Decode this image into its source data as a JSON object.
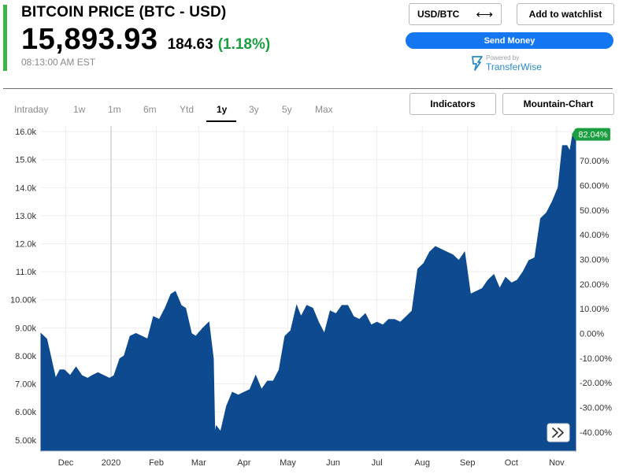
{
  "header": {
    "title": "BITCOIN PRICE (BTC - USD)",
    "price": "15,893.93",
    "change": "184.63",
    "change_pct": "(1.18%)",
    "timestamp": "08:13:00 AM EST"
  },
  "actions": {
    "pair_label": "USD/BTC",
    "swap_icon": "⟷",
    "watchlist_label": "Add to watchlist",
    "send_money_label": "Send Money",
    "powered_by": "Powered by",
    "partner_name": "TransferWise"
  },
  "range_tabs": {
    "items": [
      "Intraday",
      "1w",
      "1m",
      "6m",
      "Ytd",
      "1y",
      "3y",
      "5y",
      "Max"
    ],
    "active": "1y"
  },
  "chart_options": {
    "indicators_label": "Indicators",
    "chart_type_label": "Mountain-Chart"
  },
  "colors": {
    "accent_green": "#3bb44a",
    "positive_text": "#1a9e3f",
    "area_fill": "#0d4a8f",
    "send_button": "#1476f0",
    "badge": "#1a9e3f"
  },
  "icons": {
    "expand": "double-chevron-right-icon",
    "swap": "swap-arrows-icon",
    "partner_logo": "transferwise-flag-icon"
  },
  "chart_data": {
    "type": "area",
    "x_tick_labels": [
      "Dec",
      "2020",
      "Feb",
      "Mar",
      "Apr",
      "May",
      "Jun",
      "Jul",
      "Aug",
      "Sep",
      "Oct",
      "Nov"
    ],
    "y_tick_labels": [
      "16.0k",
      "15.0k",
      "14.0k",
      "13.0k",
      "12.0k",
      "11.0k",
      "10.00k",
      "9.00k",
      "8.00k",
      "7.00k",
      "6.00k",
      "5.00k"
    ],
    "y2_tick_labels": [
      "70.00%",
      "60.00%",
      "50.00%",
      "40.00%",
      "30.00%",
      "20.00%",
      "10.00%",
      "0.00%",
      "-10.00%",
      "-20.00%",
      "-30.00%",
      "-40.00%"
    ],
    "y_range": [
      4600,
      16200
    ],
    "last_change_badge": "82.04%",
    "grid": true,
    "series": [
      {
        "x": [
          "2019-11-14",
          "2019-11-18",
          "2019-11-21",
          "2019-11-24",
          "2019-11-27",
          "2019-11-30",
          "2019-12-04",
          "2019-12-08",
          "2019-12-12",
          "2019-12-16",
          "2019-12-19",
          "2019-12-23",
          "2019-12-27",
          "2019-12-31",
          "2020-01-03",
          "2020-01-07",
          "2020-01-10",
          "2020-01-14",
          "2020-01-18",
          "2020-01-22",
          "2020-01-26",
          "2020-01-30",
          "2020-02-03",
          "2020-02-07",
          "2020-02-11",
          "2020-02-14",
          "2020-02-18",
          "2020-02-21",
          "2020-02-25",
          "2020-02-28",
          "2020-03-04",
          "2020-03-08",
          "2020-03-11",
          "2020-03-12",
          "2020-03-13",
          "2020-03-16",
          "2020-03-20",
          "2020-03-24",
          "2020-03-28",
          "2020-04-01",
          "2020-04-05",
          "2020-04-09",
          "2020-04-13",
          "2020-04-17",
          "2020-04-21",
          "2020-04-25",
          "2020-04-29",
          "2020-05-03",
          "2020-05-07",
          "2020-05-10",
          "2020-05-14",
          "2020-05-18",
          "2020-05-22",
          "2020-05-26",
          "2020-05-30",
          "2020-06-03",
          "2020-06-07",
          "2020-06-11",
          "2020-06-15",
          "2020-06-19",
          "2020-06-23",
          "2020-06-27",
          "2020-07-01",
          "2020-07-05",
          "2020-07-09",
          "2020-07-13",
          "2020-07-17",
          "2020-07-21",
          "2020-07-25",
          "2020-07-29",
          "2020-08-02",
          "2020-08-06",
          "2020-08-10",
          "2020-08-14",
          "2020-08-18",
          "2020-08-22",
          "2020-08-26",
          "2020-08-30",
          "2020-09-03",
          "2020-09-07",
          "2020-09-11",
          "2020-09-15",
          "2020-09-19",
          "2020-09-23",
          "2020-09-27",
          "2020-10-01",
          "2020-10-05",
          "2020-10-09",
          "2020-10-13",
          "2020-10-17",
          "2020-10-21",
          "2020-10-25",
          "2020-10-29",
          "2020-11-02",
          "2020-11-05",
          "2020-11-08",
          "2020-11-10",
          "2020-11-12",
          "2020-11-14"
        ],
        "y": [
          8800,
          8600,
          7900,
          7200,
          7500,
          7500,
          7300,
          7600,
          7300,
          7200,
          7300,
          7400,
          7300,
          7200,
          7300,
          7900,
          8000,
          8700,
          8800,
          8700,
          8600,
          9400,
          9300,
          9700,
          10200,
          10300,
          9800,
          9700,
          8800,
          8700,
          9000,
          9200,
          7900,
          5200,
          5500,
          5300,
          6200,
          6700,
          6600,
          6700,
          6800,
          7300,
          6800,
          7100,
          7100,
          7500,
          8700,
          8900,
          9800,
          9400,
          9800,
          9700,
          9200,
          8800,
          9600,
          9500,
          9800,
          9800,
          9400,
          9300,
          9500,
          9100,
          9200,
          9100,
          9300,
          9300,
          9200,
          9400,
          9600,
          11100,
          11300,
          11700,
          11900,
          11800,
          11700,
          11600,
          11400,
          11700,
          10200,
          10300,
          10400,
          10700,
          10900,
          10400,
          10800,
          10600,
          10700,
          11000,
          11400,
          11500,
          12900,
          13100,
          13500,
          14000,
          15500,
          15500,
          15300,
          15900,
          15900
        ]
      }
    ]
  }
}
